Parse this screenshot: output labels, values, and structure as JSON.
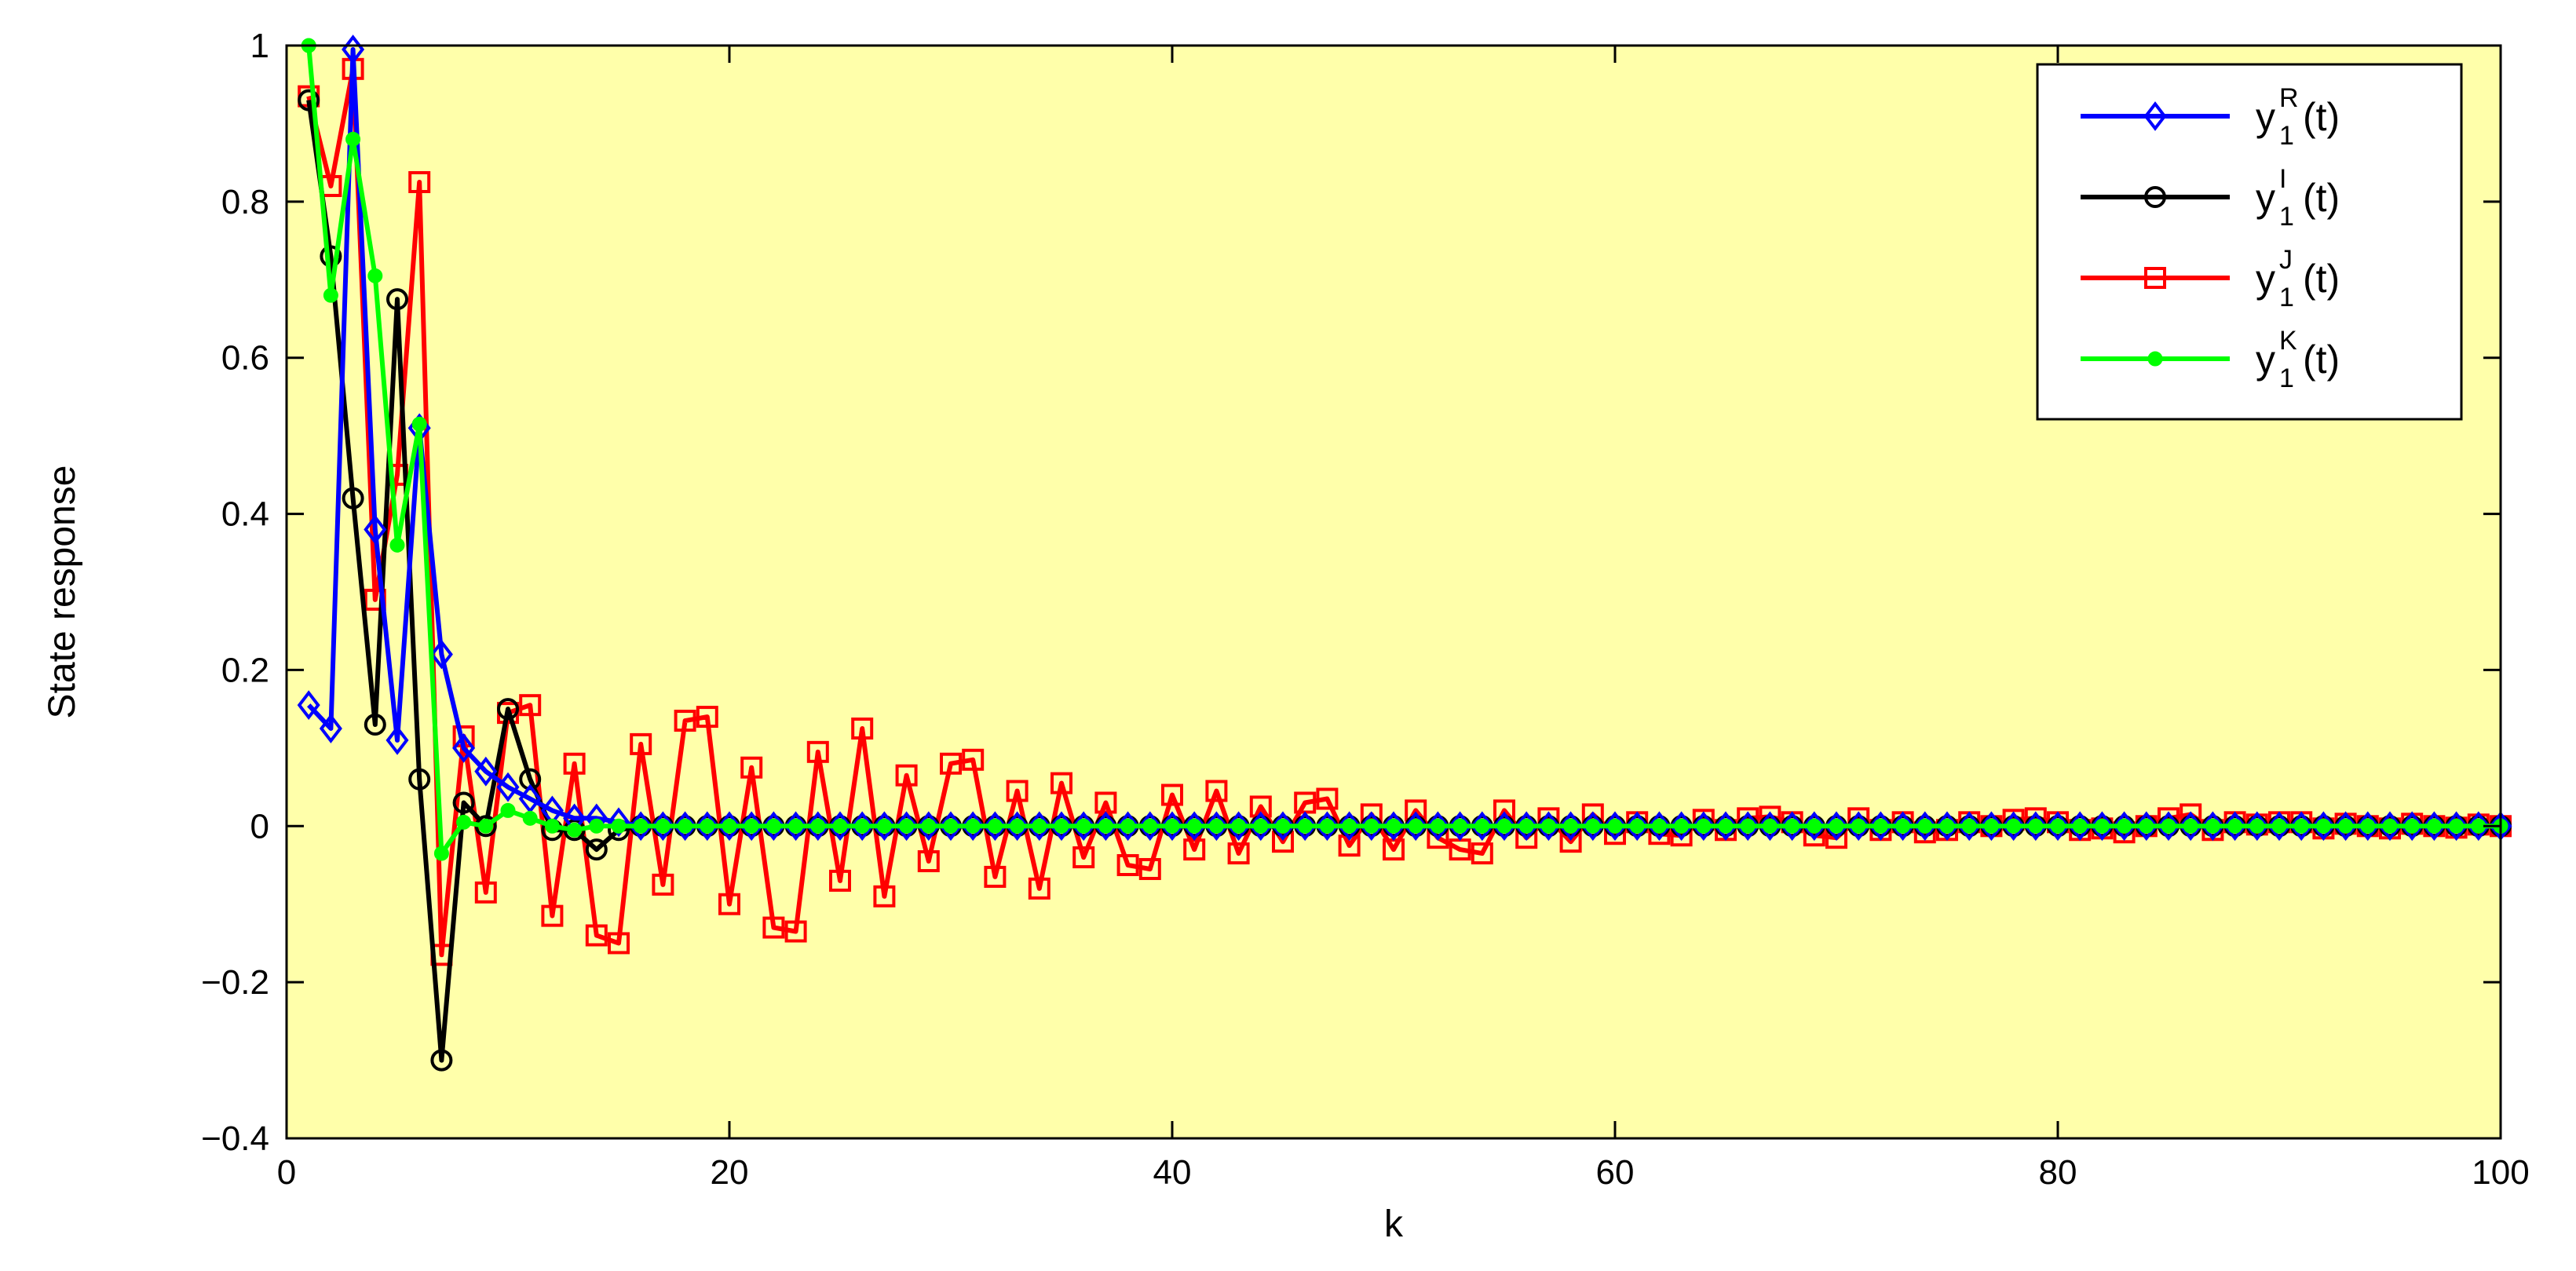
{
  "chart_data": {
    "type": "line",
    "title": "",
    "xlabel": "k",
    "ylabel": "State response",
    "xlim": [
      0,
      100
    ],
    "ylim": [
      -0.4,
      1
    ],
    "xticks": [
      0,
      20,
      40,
      60,
      80,
      100
    ],
    "yticks": [
      -0.4,
      -0.2,
      0,
      0.2,
      0.4,
      0.6,
      0.8,
      1
    ],
    "xtick_labels": [
      "0",
      "20",
      "40",
      "60",
      "80",
      "100"
    ],
    "ytick_labels": [
      "−0.4",
      "−0.2",
      "0",
      "0.2",
      "0.4",
      "0.6",
      "0.8",
      "1"
    ],
    "grid": false,
    "background_color": "#ffffaa",
    "legend_position": "top-right",
    "series": [
      {
        "name": "y",
        "name_sub": "1",
        "name_sup": "R",
        "name_suffix": "(t)",
        "color": "#0000ff",
        "marker": "diamond",
        "x": [
          1,
          2,
          3,
          4,
          5,
          6,
          7,
          8,
          9,
          10,
          11,
          12,
          13,
          14,
          15
        ],
        "y": [
          0.155,
          0.125,
          0.995,
          0.38,
          0.11,
          0.51,
          0.22,
          0.1,
          0.07,
          0.05,
          0.035,
          0.02,
          0.01,
          0.01,
          0.005
        ],
        "tail_value": 0
      },
      {
        "name": "y",
        "name_sub": "1",
        "name_sup": "I",
        "name_suffix": "(t)",
        "color": "#000000",
        "marker": "circle",
        "x": [
          1,
          2,
          3,
          4,
          5,
          6,
          7,
          8,
          9,
          10,
          11,
          12,
          13,
          14,
          15
        ],
        "y": [
          0.93,
          0.73,
          0.42,
          0.13,
          0.675,
          0.06,
          -0.3,
          0.03,
          0.0,
          0.15,
          0.06,
          -0.005,
          -0.005,
          -0.03,
          -0.005
        ],
        "tail_value": 0
      },
      {
        "name": "y",
        "name_sub": "1",
        "name_sup": "J",
        "name_suffix": "(t)",
        "color": "#ff0000",
        "marker": "square",
        "x": [
          1,
          2,
          3,
          4,
          5,
          6,
          7,
          8,
          9,
          10,
          11,
          12,
          13,
          14,
          15,
          16,
          17,
          18,
          19,
          20,
          21,
          22,
          23,
          24,
          25,
          26,
          27,
          28,
          29,
          30,
          31,
          32,
          33,
          34,
          35,
          36,
          37,
          38,
          39,
          40,
          41,
          42,
          43,
          44,
          45,
          46,
          47,
          48,
          49,
          50,
          51,
          52,
          53,
          54,
          55,
          56,
          57,
          58,
          59,
          60,
          61,
          62,
          63,
          64,
          65,
          66,
          67,
          68,
          69,
          70,
          71,
          72,
          73,
          74,
          75,
          76,
          77,
          78,
          79,
          80,
          81,
          82,
          83,
          84,
          85,
          86,
          87,
          88,
          89,
          90,
          91,
          92,
          93,
          94,
          95,
          96,
          97,
          98,
          99,
          100
        ],
        "y": [
          0.935,
          0.82,
          0.97,
          0.29,
          0.45,
          0.825,
          -0.165,
          0.115,
          -0.085,
          0.145,
          0.155,
          -0.115,
          0.08,
          -0.14,
          -0.15,
          0.105,
          -0.075,
          0.135,
          0.14,
          -0.1,
          0.075,
          -0.13,
          -0.135,
          0.095,
          -0.07,
          0.125,
          -0.09,
          0.065,
          -0.045,
          0.08,
          0.085,
          -0.065,
          0.045,
          -0.08,
          0.055,
          -0.04,
          0.03,
          -0.05,
          -0.055,
          0.04,
          -0.03,
          0.045,
          -0.035,
          0.025,
          -0.02,
          0.03,
          0.035,
          -0.025,
          0.015,
          -0.03,
          0.02,
          -0.015,
          -0.03,
          -0.035,
          0.02,
          -0.015,
          0.01,
          -0.02,
          0.015,
          -0.01,
          0.005,
          -0.01,
          -0.012,
          0.008,
          -0.005,
          0.01,
          0.012,
          0.005,
          -0.012,
          -0.015,
          0.01,
          -0.005,
          0.005,
          -0.008,
          -0.005,
          0.005,
          0.0,
          0.008,
          0.01,
          0.005,
          -0.005,
          -0.003,
          -0.008,
          0.0,
          0.01,
          0.015,
          -0.005,
          0.005,
          0.002,
          0.005,
          0.005,
          -0.003,
          0.003,
          0.0,
          -0.003,
          0.003,
          0.0,
          -0.002,
          0.002,
          0.0
        ]
      },
      {
        "name": "y",
        "name_sub": "1",
        "name_sup": "K",
        "name_suffix": "(t)",
        "color": "#00ff00",
        "marker": "star",
        "x": [
          1,
          2,
          3,
          4,
          5,
          6,
          7,
          8,
          9,
          10,
          11,
          12,
          13,
          14,
          15
        ],
        "y": [
          1.0,
          0.68,
          0.88,
          0.705,
          0.36,
          0.515,
          -0.035,
          0.005,
          0.0,
          0.02,
          0.01,
          0.0,
          -0.005,
          0.0,
          0.0
        ],
        "tail_value": 0
      }
    ]
  }
}
